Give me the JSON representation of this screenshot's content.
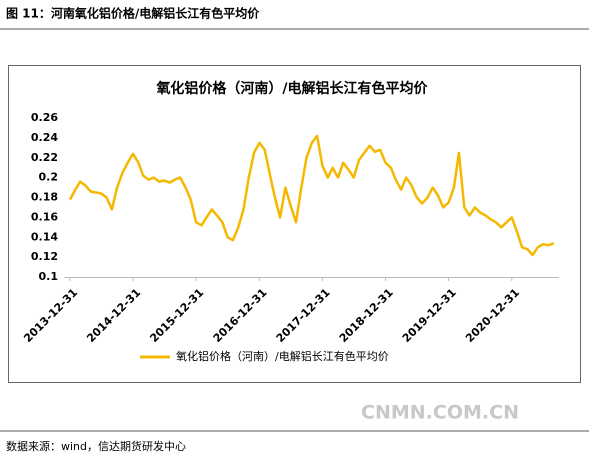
{
  "caption": "图 11：河南氧化铝价格/电解铝长江有色平均价",
  "source": "数据来源：wind，信达期货研发中心",
  "watermark": "CNMN.COM.CN",
  "chart_data": {
    "type": "line",
    "title": "氧化铝价格（河南）/电解铝长江有色平均价",
    "x": [
      "2013-12-31",
      "2014-01-31",
      "2014-02-28",
      "2014-03-31",
      "2014-04-30",
      "2014-05-31",
      "2014-06-30",
      "2014-07-31",
      "2014-08-31",
      "2014-09-30",
      "2014-10-31",
      "2014-11-30",
      "2014-12-31",
      "2015-01-31",
      "2015-02-28",
      "2015-03-31",
      "2015-04-30",
      "2015-05-31",
      "2015-06-30",
      "2015-07-31",
      "2015-08-31",
      "2015-09-30",
      "2015-10-31",
      "2015-11-30",
      "2015-12-31",
      "2016-01-31",
      "2016-02-29",
      "2016-03-31",
      "2016-04-30",
      "2016-05-31",
      "2016-06-30",
      "2016-07-31",
      "2016-08-31",
      "2016-09-30",
      "2016-10-31",
      "2016-11-30",
      "2016-12-31",
      "2017-01-31",
      "2017-02-28",
      "2017-03-31",
      "2017-04-30",
      "2017-05-31",
      "2017-06-30",
      "2017-07-31",
      "2017-08-31",
      "2017-09-30",
      "2017-10-31",
      "2017-11-30",
      "2017-12-31",
      "2018-01-31",
      "2018-02-28",
      "2018-03-31",
      "2018-04-30",
      "2018-05-31",
      "2018-06-30",
      "2018-07-31",
      "2018-08-31",
      "2018-09-30",
      "2018-10-31",
      "2018-11-30",
      "2018-12-31",
      "2019-01-31",
      "2019-02-28",
      "2019-03-31",
      "2019-04-30",
      "2019-05-31",
      "2019-06-30",
      "2019-07-31",
      "2019-08-31",
      "2019-09-30",
      "2019-10-31",
      "2019-11-30",
      "2019-12-31",
      "2020-01-31",
      "2020-02-29",
      "2020-03-31",
      "2020-04-30",
      "2020-05-31",
      "2020-06-30",
      "2020-07-31",
      "2020-08-31",
      "2020-09-30",
      "2020-10-31",
      "2020-11-30",
      "2020-12-31",
      "2021-01-31",
      "2021-02-28",
      "2021-03-31",
      "2021-04-30",
      "2021-05-31",
      "2021-06-30",
      "2021-07-31",
      "2021-08-31"
    ],
    "series": [
      {
        "name": "氧化铝价格（河南）/电解铝长江有色平均价",
        "color": "#f5b800",
        "values": [
          0.178,
          0.188,
          0.196,
          0.192,
          0.186,
          0.185,
          0.184,
          0.18,
          0.168,
          0.19,
          0.205,
          0.215,
          0.224,
          0.215,
          0.202,
          0.198,
          0.2,
          0.196,
          0.197,
          0.195,
          0.198,
          0.2,
          0.19,
          0.178,
          0.155,
          0.152,
          0.16,
          0.168,
          0.162,
          0.155,
          0.14,
          0.137,
          0.15,
          0.168,
          0.2,
          0.225,
          0.235,
          0.228,
          0.205,
          0.18,
          0.16,
          0.19,
          0.172,
          0.155,
          0.19,
          0.22,
          0.235,
          0.242,
          0.212,
          0.2,
          0.21,
          0.2,
          0.215,
          0.208,
          0.2,
          0.218,
          0.225,
          0.232,
          0.226,
          0.228,
          0.215,
          0.21,
          0.198,
          0.188,
          0.2,
          0.192,
          0.18,
          0.174,
          0.18,
          0.19,
          0.182,
          0.17,
          0.175,
          0.19,
          0.225,
          0.17,
          0.162,
          0.17,
          0.165,
          0.162,
          0.158,
          0.155,
          0.15,
          0.155,
          0.16,
          0.145,
          0.13,
          0.128,
          0.122,
          0.13,
          0.133,
          0.132,
          0.134
        ]
      }
    ],
    "xlim": [
      "2013-11-30",
      "2021-09-30"
    ],
    "xticks": [
      "2013-12-31",
      "2014-12-31",
      "2015-12-31",
      "2016-12-31",
      "2017-12-31",
      "2018-12-31",
      "2019-12-31",
      "2020-12-31"
    ],
    "ylim": [
      0.1,
      0.26
    ],
    "yticks": [
      0.1,
      0.12,
      0.14,
      0.16,
      0.18,
      0.2,
      0.22,
      0.24,
      0.26
    ],
    "grid": false,
    "legend": "bottom"
  }
}
